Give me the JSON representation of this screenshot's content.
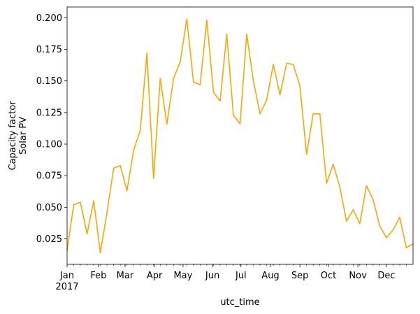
{
  "chart_data": {
    "type": "line",
    "title": "",
    "xlabel": "utc_time",
    "ylabel_lines": [
      "Capacity factor",
      "Solar PV"
    ],
    "xlim": [
      0,
      52
    ],
    "ylim": [
      0.0048,
      0.2085
    ],
    "yticks": [
      0.025,
      0.05,
      0.075,
      0.1,
      0.125,
      0.15,
      0.175,
      0.2
    ],
    "ytick_labels": [
      "0.025",
      "0.050",
      "0.075",
      "0.100",
      "0.125",
      "0.150",
      "0.175",
      "0.200"
    ],
    "xmajor_ticks": [
      0,
      4.71,
      8.71,
      13.14,
      17.43,
      21.86,
      26.14,
      30.57,
      35.0,
      39.29,
      43.71,
      48.0
    ],
    "xtick_labels": [
      "Jan",
      "Feb",
      "Mar",
      "Apr",
      "May",
      "Jun",
      "Jul",
      "Aug",
      "Sep",
      "Oct",
      "Nov",
      "Dec"
    ],
    "xtick_year": "2017",
    "xminor_ticks": [
      1,
      2,
      3,
      4,
      5,
      6,
      7,
      8,
      9,
      10,
      11,
      12,
      13,
      14,
      15,
      16,
      17,
      18,
      19,
      20,
      21,
      22,
      23,
      24,
      25,
      26,
      27,
      28,
      29,
      30,
      31,
      32,
      33,
      34,
      35,
      36,
      37,
      38,
      39,
      40,
      41,
      42,
      43,
      44,
      45,
      46,
      47,
      48,
      49,
      50,
      51
    ],
    "series": [
      {
        "name": "Solar PV",
        "color": "#ffa500",
        "x": [
          0,
          1,
          2,
          3,
          4,
          5,
          6,
          7,
          8,
          9,
          10,
          11,
          12,
          13,
          14,
          15,
          16,
          17,
          18,
          19,
          20,
          21,
          22,
          23,
          24,
          25,
          26,
          27,
          28,
          29,
          30,
          31,
          32,
          33,
          34,
          35,
          36,
          37,
          38,
          39,
          40,
          41,
          42,
          43,
          44,
          45,
          46,
          47,
          48,
          49,
          50,
          51,
          52
        ],
        "values": [
          0.016,
          0.052,
          0.054,
          0.029,
          0.055,
          0.014,
          0.046,
          0.081,
          0.083,
          0.063,
          0.095,
          0.111,
          0.172,
          0.073,
          0.152,
          0.116,
          0.152,
          0.165,
          0.199,
          0.149,
          0.147,
          0.198,
          0.141,
          0.134,
          0.187,
          0.123,
          0.116,
          0.187,
          0.15,
          0.124,
          0.135,
          0.163,
          0.139,
          0.164,
          0.163,
          0.146,
          0.092,
          0.124,
          0.124,
          0.069,
          0.084,
          0.066,
          0.039,
          0.048,
          0.037,
          0.067,
          0.056,
          0.035,
          0.026,
          0.032,
          0.042,
          0.018,
          0.021
        ]
      }
    ]
  }
}
